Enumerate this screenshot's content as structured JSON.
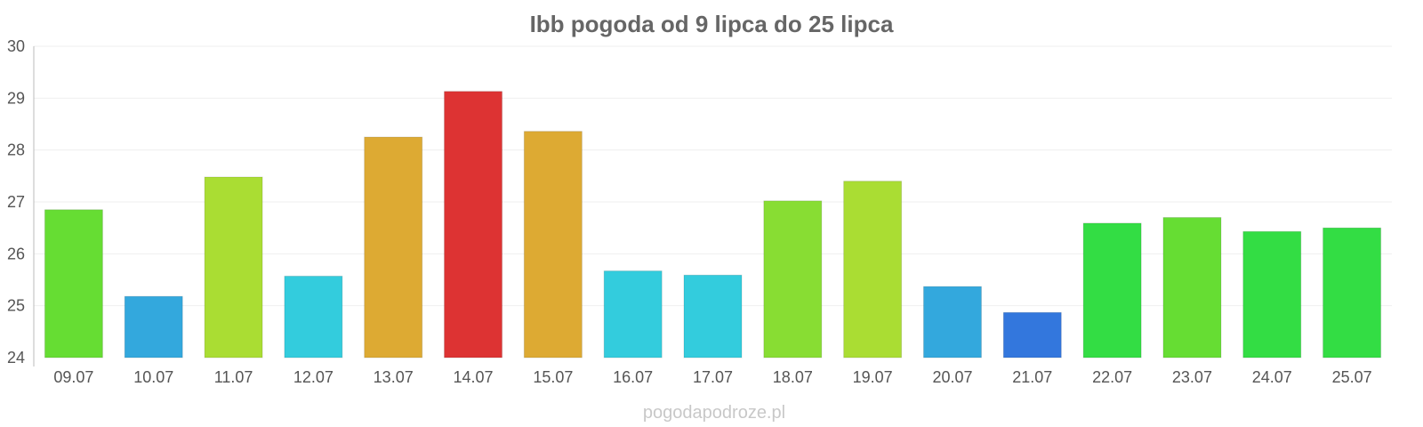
{
  "chart_data": {
    "type": "bar",
    "title": "Ibb pogoda od 9 lipca do 25 lipca",
    "categories": [
      "09.07",
      "10.07",
      "11.07",
      "12.07",
      "13.07",
      "14.07",
      "15.07",
      "16.07",
      "17.07",
      "18.07",
      "19.07",
      "20.07",
      "21.07",
      "22.07",
      "23.07",
      "24.07",
      "25.07"
    ],
    "values": [
      26.85,
      25.18,
      27.48,
      25.57,
      28.25,
      29.13,
      28.36,
      25.67,
      25.59,
      27.02,
      27.4,
      25.37,
      24.87,
      26.59,
      26.7,
      26.43,
      26.5
    ],
    "colors": [
      "#66dd33",
      "#33a8dd",
      "#aadd33",
      "#33ccdd",
      "#ddaa33",
      "#dd3333",
      "#ddaa33",
      "#33ccdd",
      "#33ccdd",
      "#88dd33",
      "#aadd33",
      "#33a8dd",
      "#3377dd",
      "#33dd44",
      "#66dd33",
      "#33dd44",
      "#33dd44"
    ],
    "ylim": [
      24,
      30
    ],
    "yticks": [
      24,
      25,
      26,
      27,
      28,
      29,
      30
    ],
    "grid": true,
    "xlabel": "",
    "ylabel": ""
  },
  "watermark": "pogodapodroze.pl"
}
